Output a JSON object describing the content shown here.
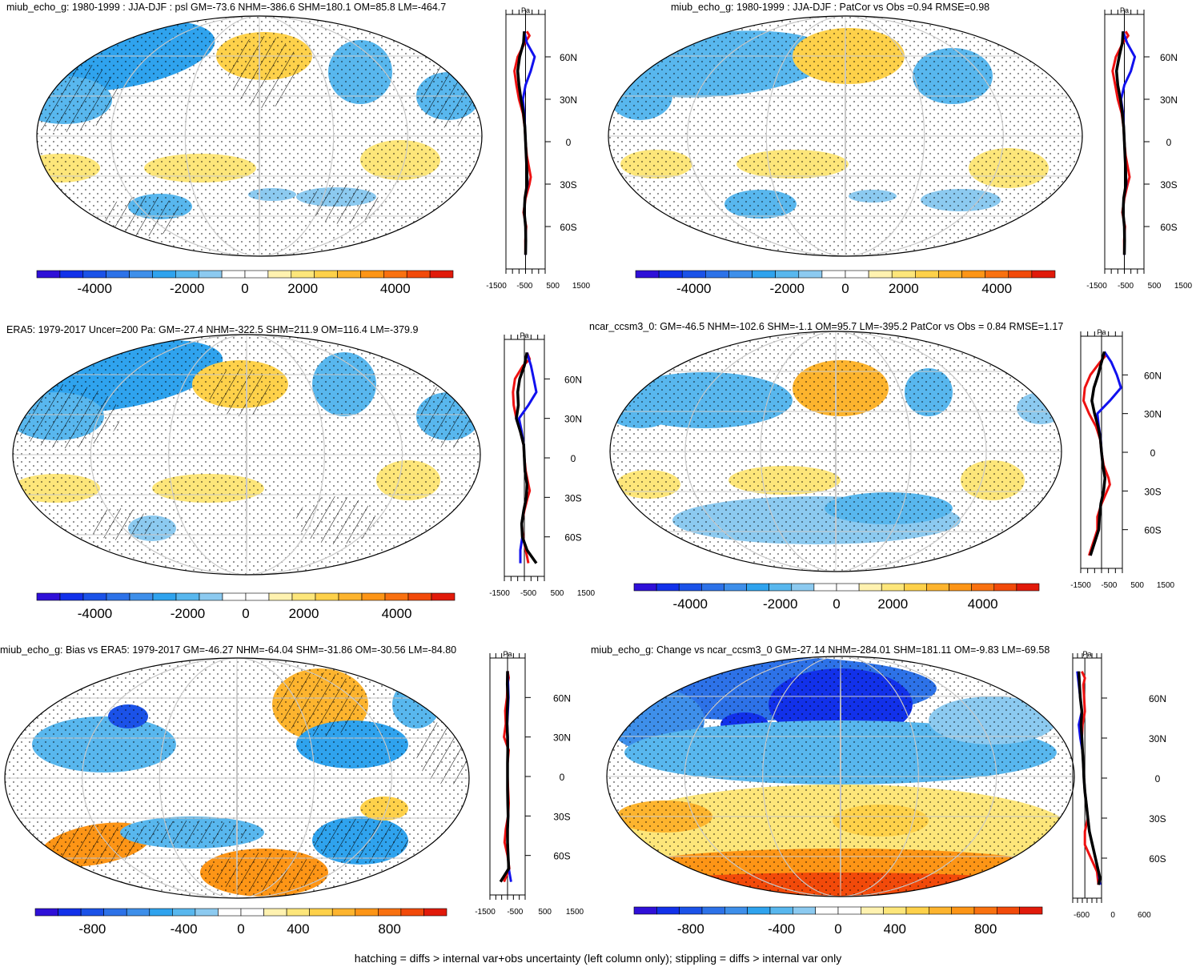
{
  "footer": {
    "caption": "hatching = diffs > internal var+obs uncertainty (left column only); stippling = diffs > internal var only"
  },
  "colors": {
    "palette": [
      "#2f10d8",
      "#1231ea",
      "#1b52e8",
      "#2d72e8",
      "#3e8fea",
      "#2fa3ee",
      "#58b7ee",
      "#8ccaf0",
      "#ffffff",
      "#ffffff",
      "#fff2b0",
      "#fde67a",
      "#fed14a",
      "#fdb42e",
      "#fd9516",
      "#f97110",
      "#f24a0a",
      "#e11a0a"
    ],
    "black": "#000000",
    "red": "#ee1111",
    "blue": "#1111ee",
    "grid": "#c8c8c8"
  },
  "chart_data": [
    {
      "type": "heatmap",
      "title": "miub_echo_g: 1980-1999 : JJA-DJF : psl GM=-73.6 NHM=-386.6 SHM=180.1 OM=85.8 LM=-464.7",
      "colorbar_ticks": [
        "-4000",
        "-2000",
        "0",
        "2000",
        "4000"
      ],
      "hatching": true,
      "zonal_profile": {
        "units": "Pa",
        "xlim": [
          -1500,
          1500
        ],
        "xticks": [
          "-1500",
          "-500",
          "500",
          "1500"
        ],
        "ylim": [
          -90,
          90
        ],
        "yticks": [
          "60N",
          "30N",
          "0",
          "30S",
          "60S"
        ],
        "series": [
          {
            "name": "black",
            "lat": [
              78,
              70,
              60,
              50,
              40,
              30,
              20,
              10,
              0,
              -10,
              -20,
              -30,
              -40,
              -50,
              -60,
              -70,
              -80
            ],
            "values": [
              -100,
              -150,
              -450,
              -600,
              -500,
              -350,
              -150,
              -50,
              0,
              50,
              100,
              120,
              -50,
              -100,
              0,
              20,
              0
            ]
          },
          {
            "name": "red",
            "lat": [
              78,
              75,
              70,
              60,
              50,
              40,
              30,
              20,
              10,
              0,
              -10,
              -20,
              -25,
              -30,
              -40,
              -50,
              -60,
              -70,
              -80
            ],
            "values": [
              100,
              300,
              -50,
              -600,
              -850,
              -700,
              -500,
              -200,
              -60,
              0,
              100,
              300,
              400,
              300,
              0,
              -150,
              50,
              -20,
              0
            ]
          },
          {
            "name": "blue",
            "lat": [
              78,
              70,
              60,
              50,
              40,
              30,
              20,
              10,
              0,
              -10,
              -20,
              -30,
              -40,
              -50,
              -60,
              -70,
              -80
            ],
            "values": [
              -100,
              100,
              700,
              400,
              0,
              -200,
              -100,
              -40,
              0,
              50,
              100,
              150,
              -50,
              -100,
              0,
              20,
              0
            ]
          }
        ]
      }
    },
    {
      "type": "heatmap",
      "title": "miub_echo_g: 1980-1999 : JJA-DJF : PatCor vs Obs =0.94 RMSE=0.98",
      "colorbar_ticks": [
        "-4000",
        "-2000",
        "0",
        "2000",
        "4000"
      ],
      "hatching": false,
      "zonal_profile": {
        "units": "Pa",
        "xlim": [
          -1500,
          1500
        ],
        "xticks": [
          "-1500",
          "-500",
          "500",
          "1500"
        ],
        "ylim": [
          -90,
          90
        ],
        "yticks": [
          "60N",
          "30N",
          "0",
          "30S",
          "60S"
        ],
        "series": [
          {
            "name": "black",
            "lat": [
              78,
              70,
              60,
              50,
              40,
              30,
              20,
              10,
              0,
              -10,
              -20,
              -30,
              -40,
              -50,
              -60,
              -70,
              -80
            ],
            "values": [
              -100,
              -150,
              -400,
              -600,
              -500,
              -300,
              -150,
              -50,
              0,
              50,
              100,
              120,
              -50,
              -100,
              0,
              20,
              0
            ]
          },
          {
            "name": "red",
            "lat": [
              78,
              75,
              70,
              60,
              50,
              40,
              30,
              20,
              10,
              0,
              -10,
              -20,
              -25,
              -30,
              -40,
              -50,
              -60,
              -70,
              -80
            ],
            "values": [
              100,
              300,
              -100,
              -650,
              -900,
              -700,
              -500,
              -200,
              -60,
              0,
              100,
              300,
              400,
              250,
              0,
              -150,
              50,
              -20,
              0
            ]
          },
          {
            "name": "blue",
            "lat": [
              78,
              70,
              60,
              50,
              40,
              30,
              20,
              10,
              0,
              -10,
              -20,
              -30,
              -40,
              -50,
              -60,
              -70,
              -80
            ],
            "values": [
              -100,
              200,
              800,
              500,
              0,
              -250,
              -100,
              -40,
              0,
              50,
              100,
              150,
              -50,
              -100,
              0,
              20,
              0
            ]
          }
        ]
      }
    },
    {
      "type": "heatmap",
      "title": "ERA5: 1979-2017 Uncer=200 Pa: GM=-27.4 NHM=-322.5 SHM=211.9 OM=116.4 LM=-379.9",
      "colorbar_ticks": [
        "-4000",
        "-2000",
        "0",
        "2000",
        "4000"
      ],
      "hatching": true,
      "zonal_profile": {
        "units": "Pa",
        "xlim": [
          -1500,
          1500
        ],
        "xticks": [
          "-1500",
          "-500",
          "500",
          "1500"
        ],
        "ylim": [
          -90,
          90
        ],
        "yticks": [
          "60N",
          "30N",
          "0",
          "30S",
          "60S"
        ],
        "series": [
          {
            "name": "black",
            "lat": [
              80,
              70,
              60,
              50,
              40,
              30,
              20,
              10,
              0,
              -10,
              -20,
              -30,
              -40,
              -50,
              -60,
              -70,
              -80
            ],
            "values": [
              200,
              0,
              -350,
              -500,
              -450,
              -600,
              -300,
              -50,
              0,
              50,
              200,
              150,
              -50,
              -200,
              -150,
              200,
              900
            ]
          },
          {
            "name": "red",
            "lat": [
              80,
              75,
              70,
              60,
              50,
              40,
              30,
              20,
              10,
              0,
              -10,
              -20,
              -25,
              -30,
              -40,
              -50,
              -60,
              -70,
              -80
            ],
            "values": [
              200,
              400,
              -100,
              -700,
              -850,
              -800,
              -600,
              -300,
              -60,
              0,
              100,
              300,
              400,
              250,
              0,
              -200,
              -100,
              100,
              300
            ]
          },
          {
            "name": "blue",
            "lat": [
              80,
              70,
              60,
              50,
              40,
              30,
              20,
              10,
              0,
              -10,
              -20,
              -30,
              -40,
              -50,
              -60,
              -70,
              -80
            ],
            "values": [
              200,
              500,
              700,
              900,
              300,
              -400,
              -200,
              -40,
              0,
              50,
              200,
              150,
              -50,
              -200,
              -150,
              -300,
              -300
            ]
          }
        ]
      }
    },
    {
      "type": "heatmap",
      "title": "ncar_ccsm3_0: GM=-46.5 NHM=-102.6 SHM=-1.1 OM=95.7 LM=-395.2 PatCor vs Obs = 0.84 RMSE=1.17",
      "colorbar_ticks": [
        "-4000",
        "-2000",
        "0",
        "2000",
        "4000"
      ],
      "hatching": false,
      "zonal_profile": {
        "units": "Pa",
        "xlim": [
          -1500,
          1500
        ],
        "xticks": [
          "-1500",
          "-500",
          "500",
          "1500"
        ],
        "ylim": [
          -90,
          90
        ],
        "yticks": [
          "60N",
          "30N",
          "0",
          "30S",
          "60S"
        ],
        "series": [
          {
            "name": "black",
            "lat": [
              78,
              70,
              60,
              50,
              40,
              30,
              20,
              10,
              0,
              -10,
              -20,
              -30,
              -40,
              -50,
              -60,
              -70,
              -80
            ],
            "values": [
              200,
              0,
              -250,
              -550,
              -700,
              -500,
              -250,
              -80,
              0,
              100,
              250,
              150,
              -50,
              -150,
              -200,
              -500,
              -800
            ]
          },
          {
            "name": "red",
            "lat": [
              78,
              75,
              70,
              60,
              50,
              40,
              30,
              20,
              10,
              0,
              -10,
              -20,
              -25,
              -30,
              -40,
              -50,
              -60,
              -70,
              -80
            ],
            "values": [
              200,
              300,
              -100,
              -800,
              -1200,
              -1300,
              -900,
              -400,
              -100,
              0,
              150,
              500,
              600,
              400,
              0,
              -300,
              -300,
              -600,
              -900
            ]
          },
          {
            "name": "blue",
            "lat": [
              78,
              70,
              60,
              50,
              40,
              30,
              20,
              10,
              0,
              -10,
              -20,
              -30,
              -40,
              -50,
              -60,
              -70,
              -80
            ],
            "values": [
              200,
              700,
              1100,
              1400,
              600,
              -300,
              -200,
              -60,
              0,
              100,
              250,
              150,
              -50,
              -150,
              -200,
              -500,
              -800
            ]
          }
        ]
      }
    },
    {
      "type": "heatmap",
      "title": "miub_echo_g: Bias vs ERA5: 1979-2017 GM=-46.27 NHM=-64.04 SHM=-31.86 OM=-30.56 LM=-84.80",
      "colorbar_ticks": [
        "-800",
        "-400",
        "0",
        "400",
        "800"
      ],
      "hatching": true,
      "zonal_profile": {
        "units": "Pa",
        "xlim": [
          -1500,
          1500
        ],
        "xticks": [
          "-1500",
          "-500",
          "500",
          "1500"
        ],
        "ylim": [
          -90,
          90
        ],
        "yticks": [
          "60N",
          "30N",
          "0",
          "30S",
          "60S"
        ],
        "series": [
          {
            "name": "black",
            "lat": [
              80,
              70,
              60,
              50,
              40,
              30,
              20,
              10,
              0,
              -10,
              -20,
              -30,
              -40,
              -50,
              -60,
              -70,
              -80
            ],
            "values": [
              0,
              -20,
              30,
              -30,
              -50,
              0,
              20,
              0,
              0,
              0,
              20,
              50,
              0,
              0,
              50,
              100,
              -600
            ]
          },
          {
            "name": "red",
            "lat": [
              80,
              75,
              70,
              60,
              50,
              40,
              30,
              20,
              10,
              0,
              -10,
              -20,
              -30,
              -40,
              -50,
              -60,
              -70,
              -80
            ],
            "values": [
              0,
              100,
              0,
              -50,
              -200,
              -150,
              -300,
              100,
              0,
              0,
              50,
              100,
              50,
              -150,
              -250,
              0,
              150,
              -300
            ]
          },
          {
            "name": "blue",
            "lat": [
              80,
              70,
              60,
              50,
              40,
              30,
              20,
              10,
              0,
              -10,
              -20,
              -30,
              -40,
              -50,
              -60,
              -70,
              -80
            ],
            "values": [
              0,
              50,
              80,
              30,
              -30,
              20,
              20,
              0,
              0,
              0,
              20,
              50,
              0,
              0,
              50,
              100,
              300
            ]
          }
        ]
      }
    },
    {
      "type": "heatmap",
      "title": "miub_echo_g: Change vs ncar_ccsm3_0 GM=-27.14 NHM=-284.01 SHM=181.11 OM=-9.83 LM=-69.58",
      "colorbar_ticks": [
        "-800",
        "-400",
        "0",
        "400",
        "800"
      ],
      "hatching": false,
      "zonal_profile": {
        "units": "Pa",
        "xlim": [
          -800,
          1100
        ],
        "xticks": [
          "-600",
          "0",
          "600"
        ],
        "ylim": [
          -90,
          90
        ],
        "yticks": [
          "60N",
          "30N",
          "0",
          "30S",
          "60S"
        ],
        "series": [
          {
            "name": "black",
            "lat": [
              80,
              70,
              60,
              50,
              40,
              30,
              20,
              10,
              0,
              -10,
              -20,
              -30,
              -40,
              -50,
              -60,
              -70,
              -75,
              -80
            ],
            "values": [
              -400,
              -350,
              -300,
              -200,
              -250,
              -200,
              -150,
              -100,
              -60,
              0,
              100,
              200,
              300,
              500,
              700,
              900,
              1000,
              900
            ]
          },
          {
            "name": "red",
            "lat": [
              80,
              75,
              70,
              60,
              50,
              40,
              30,
              20,
              10,
              0,
              -10,
              -20,
              -30,
              -40,
              -50,
              -60,
              -70,
              -80
            ],
            "values": [
              -200,
              0,
              -100,
              -50,
              0,
              -150,
              -200,
              -150,
              -100,
              -60,
              0,
              100,
              200,
              0,
              0,
              400,
              800,
              900
            ]
          },
          {
            "name": "blue",
            "lat": [
              80,
              70,
              60,
              50,
              40,
              30,
              20,
              10,
              0,
              -10,
              -20,
              -30,
              -40,
              -50,
              -60,
              -70,
              -80
            ],
            "values": [
              -500,
              -400,
              -300,
              -200,
              -400,
              -300,
              -150,
              -100,
              -60,
              0,
              100,
              200,
              300,
              500,
              700,
              900,
              1000
            ]
          }
        ]
      }
    }
  ]
}
